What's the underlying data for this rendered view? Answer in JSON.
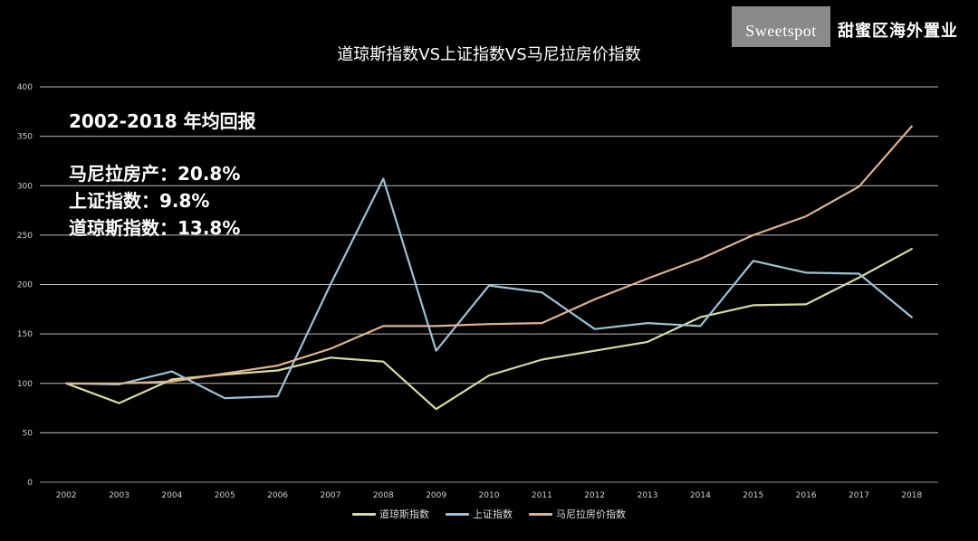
{
  "brand": {
    "logo_text": "Sweetspot",
    "name_cn": "甜蜜区海外置业"
  },
  "annotations": {
    "heading": "2002-2018  年均回报",
    "lines": [
      "马尼拉房产：20.8%",
      "上证指数：9.8%",
      "道琼斯指数：13.8%"
    ]
  },
  "chart_data": {
    "type": "line",
    "title": "道琼斯指数VS上证指数VS马尼拉房价指数",
    "xlabel": "",
    "ylabel": "",
    "ylim": [
      0,
      400
    ],
    "yticks": [
      0,
      50,
      100,
      150,
      200,
      250,
      300,
      350,
      400
    ],
    "grid": true,
    "legend_position": "bottom",
    "categories": [
      "2002",
      "2003",
      "2004",
      "2005",
      "2006",
      "2007",
      "2008",
      "2009",
      "2010",
      "2011",
      "2012",
      "2013",
      "2014",
      "2015",
      "2016",
      "2017",
      "2018"
    ],
    "series": [
      {
        "name": "道琼斯指数",
        "color": "#d9dca0",
        "values": [
          100,
          80,
          104,
          109,
          113,
          126,
          122,
          74,
          108,
          124,
          133,
          142,
          167,
          179,
          180,
          207,
          236
        ]
      },
      {
        "name": "上证指数",
        "color": "#9cc3d9",
        "values": [
          100,
          99,
          112,
          85,
          87,
          200,
          307,
          133,
          199,
          192,
          155,
          161,
          158,
          224,
          212,
          211,
          167
        ]
      },
      {
        "name": "马尼拉房价指数",
        "color": "#e2b48c",
        "values": [
          100,
          100,
          102,
          110,
          118,
          135,
          158,
          158,
          160,
          161,
          185,
          206,
          226,
          250,
          269,
          299,
          360
        ]
      }
    ]
  }
}
